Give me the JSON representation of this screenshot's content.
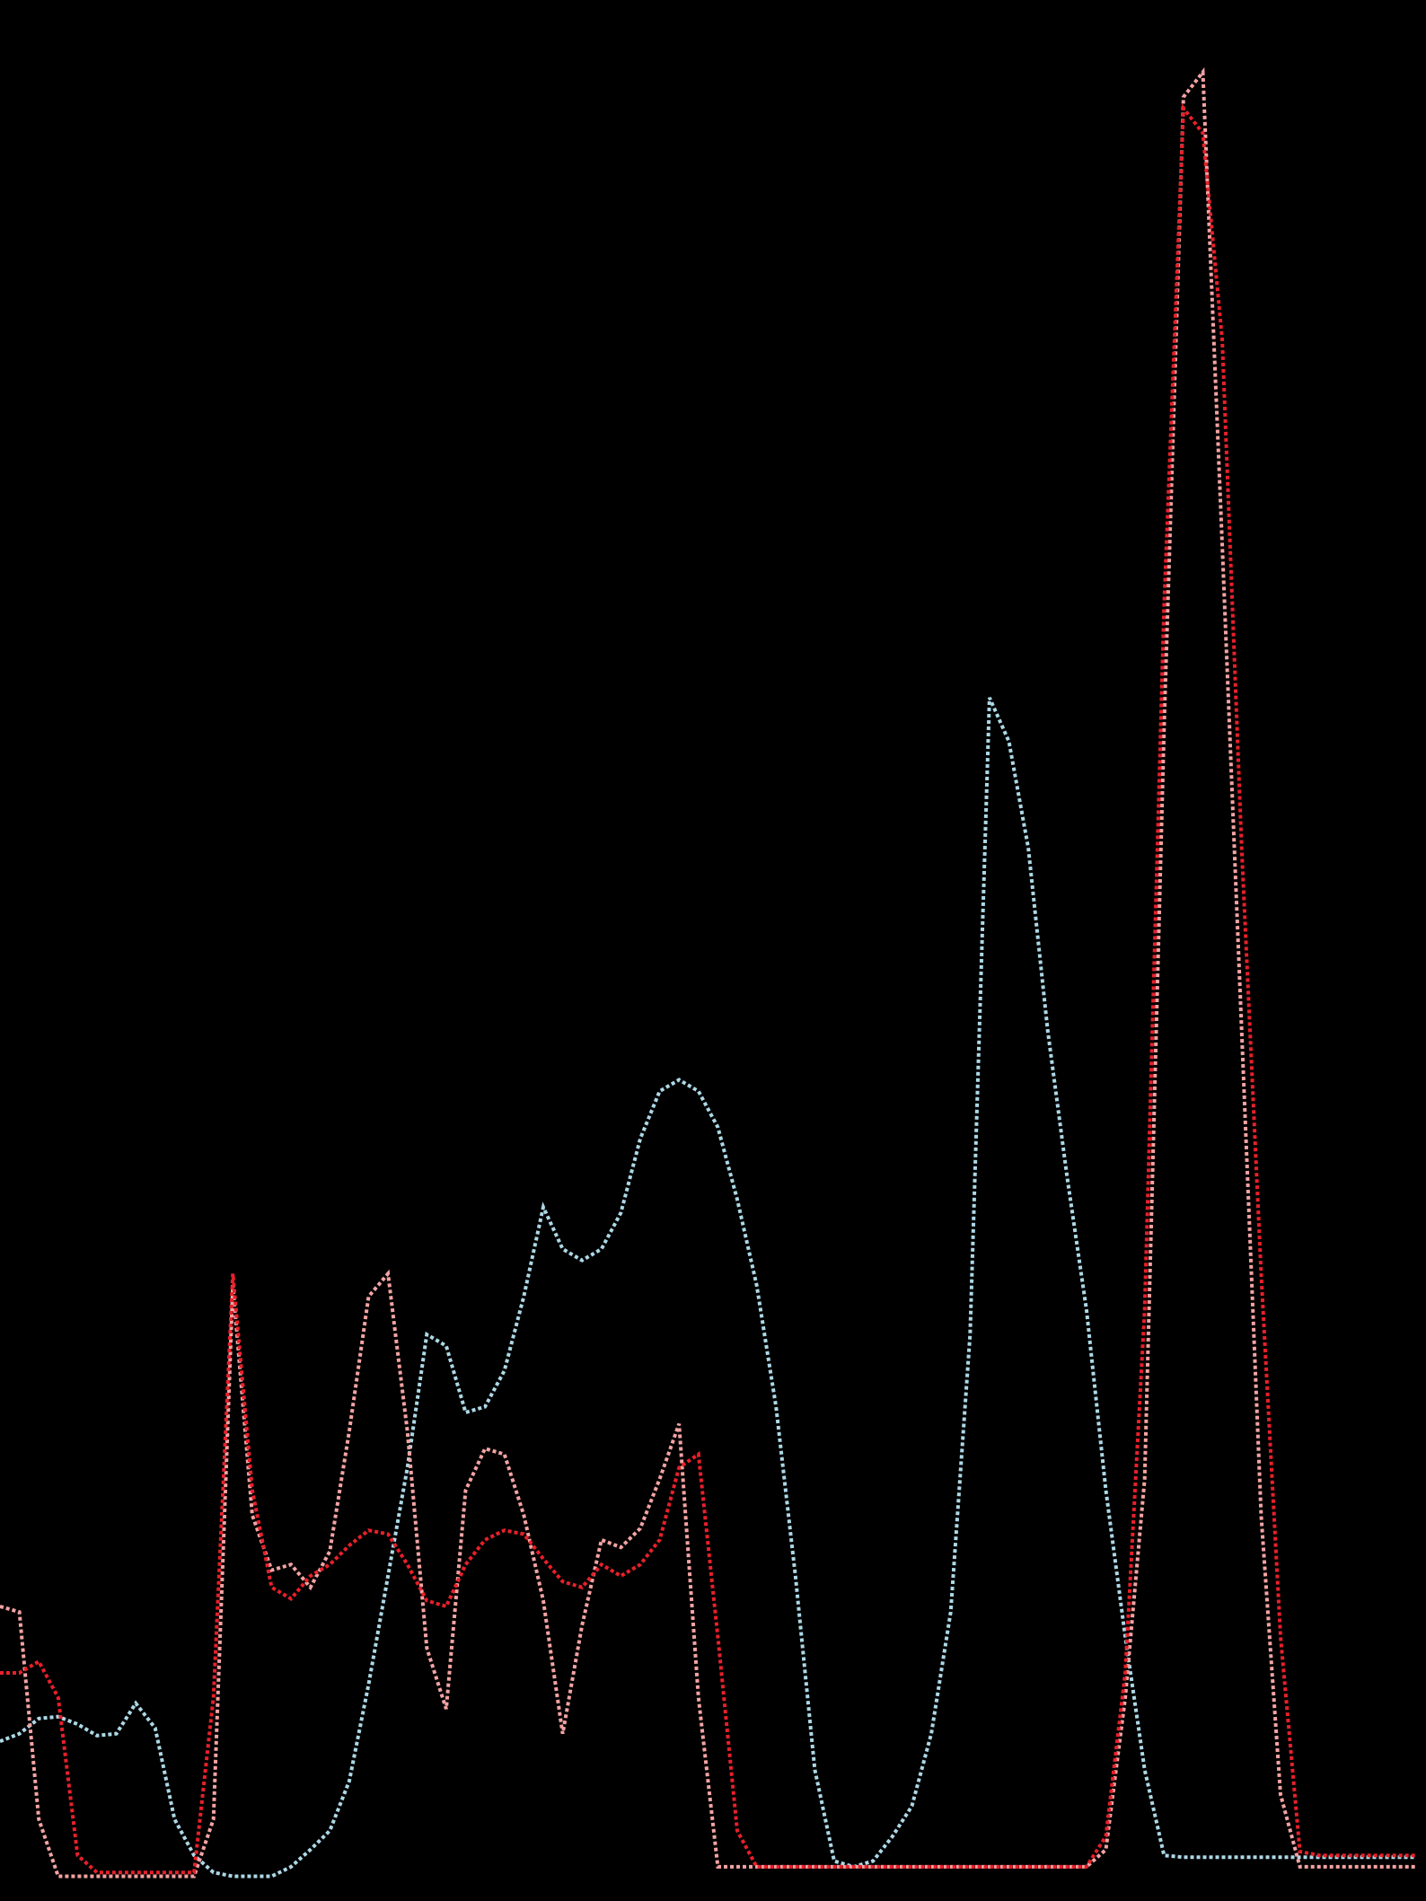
{
  "chart_data": {
    "type": "line",
    "x": [
      0,
      1,
      2,
      3,
      4,
      5,
      6,
      7,
      8,
      9,
      10,
      11,
      12,
      13,
      14,
      15,
      16,
      17,
      18,
      19,
      20,
      21,
      22,
      23,
      24,
      25,
      26,
      27,
      28,
      29,
      30,
      31,
      32,
      33,
      34,
      35,
      36,
      37,
      38,
      39,
      40,
      41,
      42,
      43,
      44,
      45,
      46,
      47,
      48,
      49,
      50,
      51,
      52,
      53,
      54,
      55,
      56,
      57,
      58,
      59,
      60,
      61,
      62,
      63,
      64,
      65,
      66,
      67,
      68,
      69,
      70,
      71,
      72,
      73
    ],
    "xlim": [
      0,
      73.5
    ],
    "ylim": [
      0,
      100
    ],
    "series": [
      {
        "color": "#add8e6",
        "values": [
          8.4,
          8.8,
          9.6,
          9.7,
          9.3,
          8.7,
          8.8,
          10.4,
          9.1,
          4.3,
          2.4,
          1.5,
          1.3,
          1.3,
          1.3,
          1.8,
          2.7,
          3.7,
          6.3,
          11.4,
          17.1,
          22.8,
          29.8,
          29.2,
          25.7,
          26.0,
          27.9,
          31.8,
          36.5,
          34.3,
          33.7,
          34.3,
          36.2,
          40.1,
          42.6,
          43.2,
          42.6,
          40.7,
          36.9,
          32.4,
          26.0,
          17.1,
          6.9,
          2.1,
          1.8,
          2.1,
          3.4,
          5.0,
          8.8,
          15.2,
          29.8,
          63.3,
          61.0,
          55.4,
          45.8,
          38.1,
          31.1,
          21.6,
          13.9,
          6.9,
          2.4,
          2.3,
          2.3,
          2.3,
          2.3,
          2.3,
          2.3,
          2.3,
          2.3,
          2.3,
          2.3,
          2.3,
          2.3,
          2.3
        ]
      },
      {
        "color": "#f4a3a3",
        "values": [
          15.5,
          15.2,
          4.3,
          1.3,
          1.3,
          1.3,
          1.3,
          1.3,
          1.3,
          1.3,
          1.3,
          4.3,
          32.4,
          20.3,
          17.4,
          17.7,
          16.5,
          18.4,
          24.7,
          31.8,
          33.0,
          24.7,
          13.3,
          10.1,
          21.6,
          23.8,
          23.5,
          20.3,
          15.8,
          8.8,
          14.5,
          19.0,
          18.6,
          19.6,
          22.2,
          25.1,
          10.7,
          1.8,
          1.8,
          1.8,
          1.8,
          1.8,
          1.8,
          1.8,
          1.8,
          1.8,
          1.8,
          1.8,
          1.8,
          1.8,
          1.8,
          1.8,
          1.8,
          1.8,
          1.8,
          1.8,
          1.8,
          2.7,
          10.7,
          22.2,
          61.7,
          94.9,
          96.2,
          71.3,
          45.8,
          20.3,
          5.6,
          1.8,
          1.8,
          1.8,
          1.8,
          1.8,
          1.8,
          1.8
        ]
      },
      {
        "color": "#e8202a",
        "values": [
          12.0,
          12.0,
          12.6,
          10.7,
          2.4,
          1.5,
          1.5,
          1.5,
          1.5,
          1.5,
          1.5,
          10.7,
          33.0,
          21.6,
          16.5,
          15.9,
          17.1,
          17.7,
          18.7,
          19.5,
          19.3,
          17.7,
          15.8,
          15.5,
          17.7,
          19.0,
          19.5,
          19.3,
          18.0,
          16.8,
          16.5,
          17.7,
          17.1,
          17.7,
          19.0,
          22.8,
          23.5,
          13.9,
          3.7,
          1.8,
          1.8,
          1.8,
          1.8,
          1.8,
          1.8,
          1.8,
          1.8,
          1.8,
          1.8,
          1.8,
          1.8,
          1.8,
          1.8,
          1.8,
          1.8,
          1.8,
          1.8,
          3.4,
          12.0,
          31.1,
          68.1,
          94.3,
          93.0,
          82.1,
          55.4,
          33.0,
          13.9,
          2.6,
          2.4,
          2.4,
          2.4,
          2.4,
          2.4,
          2.4
        ]
      }
    ]
  }
}
